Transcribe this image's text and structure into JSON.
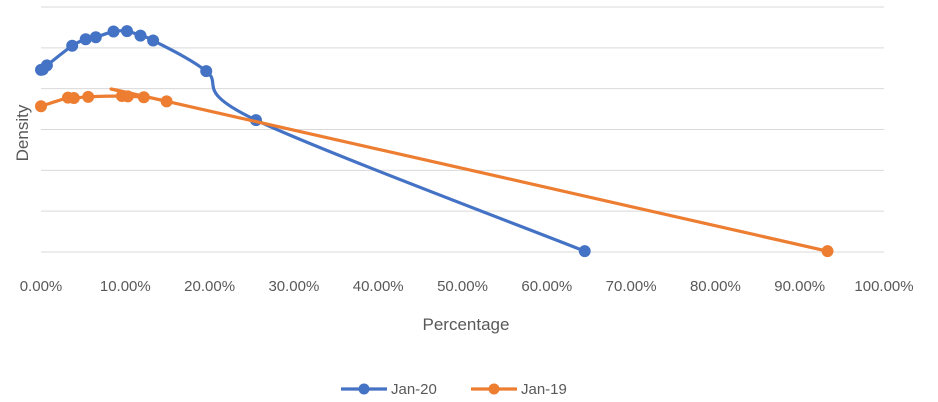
{
  "chart_data": {
    "type": "line",
    "title": "",
    "xlabel": "Percentage",
    "ylabel": "Density",
    "xlim": [
      0,
      1.0
    ],
    "ylim": [
      0,
      6
    ],
    "x_ticks": [
      0,
      0.1,
      0.2,
      0.3,
      0.4,
      0.5,
      0.6,
      0.7,
      0.8,
      0.9,
      1.0
    ],
    "x_tick_labels": [
      "0.00%",
      "10.00%",
      "20.00%",
      "30.00%",
      "40.00%",
      "50.00%",
      "60.00%",
      "70.00%",
      "80.00%",
      "90.00%",
      "100.00%"
    ],
    "y_gridlines": [
      0,
      1,
      2,
      3,
      4,
      5,
      6
    ],
    "y_tick_labels_visible": false,
    "grid": true,
    "legend_position": "bottom",
    "series": [
      {
        "name": "Jan-20",
        "color": "#4472C4",
        "smooth": true,
        "points": [
          {
            "x": 0.0,
            "y": 4.46
          },
          {
            "x": 0.002,
            "y": 4.47
          },
          {
            "x": 0.007,
            "y": 4.57
          },
          {
            "x": 0.037,
            "y": 5.05
          },
          {
            "x": 0.053,
            "y": 5.21
          },
          {
            "x": 0.065,
            "y": 5.26
          },
          {
            "x": 0.086,
            "y": 5.4
          },
          {
            "x": 0.102,
            "y": 5.41
          },
          {
            "x": 0.118,
            "y": 5.3
          },
          {
            "x": 0.133,
            "y": 5.18
          },
          {
            "x": 0.196,
            "y": 4.43
          },
          {
            "x": 0.255,
            "y": 3.23
          },
          {
            "x": 0.645,
            "y": 0.02
          }
        ]
      },
      {
        "name": "Jan-19",
        "color": "#ED7D31",
        "smooth": true,
        "points": [
          {
            "x": 0.0,
            "y": 3.57
          },
          {
            "x": 0.032,
            "y": 3.78
          },
          {
            "x": 0.039,
            "y": 3.77
          },
          {
            "x": 0.056,
            "y": 3.8
          },
          {
            "x": 0.096,
            "y": 3.82
          },
          {
            "x": 0.103,
            "y": 3.81
          },
          {
            "x": 0.122,
            "y": 3.79
          },
          {
            "x": 0.149,
            "y": 3.69
          },
          {
            "x": 0.933,
            "y": 0.02
          }
        ]
      }
    ]
  }
}
